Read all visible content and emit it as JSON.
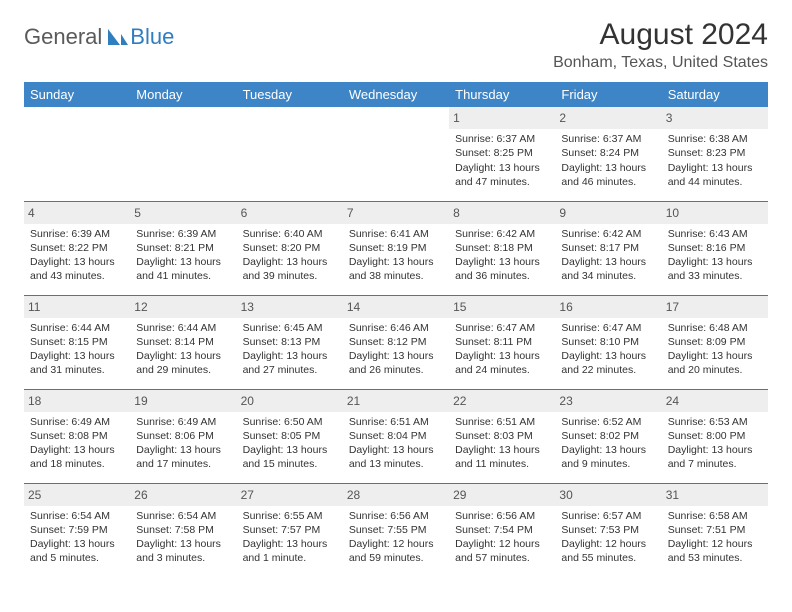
{
  "logo": {
    "main": "General",
    "accent": "Blue"
  },
  "title": "August 2024",
  "location": "Bonham, Texas, United States",
  "colors": {
    "header_bg": "#3d85c6",
    "header_text": "#ffffff",
    "daynum_bg": "#eeeeee",
    "border": "#2f7ec0",
    "logo_accent": "#2f7ec0",
    "body_text": "#333333"
  },
  "weekdays": [
    "Sunday",
    "Monday",
    "Tuesday",
    "Wednesday",
    "Thursday",
    "Friday",
    "Saturday"
  ],
  "weeks": [
    [
      {
        "n": "",
        "sr": "",
        "ss": "",
        "dl1": "",
        "dl2": ""
      },
      {
        "n": "",
        "sr": "",
        "ss": "",
        "dl1": "",
        "dl2": ""
      },
      {
        "n": "",
        "sr": "",
        "ss": "",
        "dl1": "",
        "dl2": ""
      },
      {
        "n": "",
        "sr": "",
        "ss": "",
        "dl1": "",
        "dl2": ""
      },
      {
        "n": "1",
        "sr": "Sunrise: 6:37 AM",
        "ss": "Sunset: 8:25 PM",
        "dl1": "Daylight: 13 hours",
        "dl2": "and 47 minutes."
      },
      {
        "n": "2",
        "sr": "Sunrise: 6:37 AM",
        "ss": "Sunset: 8:24 PM",
        "dl1": "Daylight: 13 hours",
        "dl2": "and 46 minutes."
      },
      {
        "n": "3",
        "sr": "Sunrise: 6:38 AM",
        "ss": "Sunset: 8:23 PM",
        "dl1": "Daylight: 13 hours",
        "dl2": "and 44 minutes."
      }
    ],
    [
      {
        "n": "4",
        "sr": "Sunrise: 6:39 AM",
        "ss": "Sunset: 8:22 PM",
        "dl1": "Daylight: 13 hours",
        "dl2": "and 43 minutes."
      },
      {
        "n": "5",
        "sr": "Sunrise: 6:39 AM",
        "ss": "Sunset: 8:21 PM",
        "dl1": "Daylight: 13 hours",
        "dl2": "and 41 minutes."
      },
      {
        "n": "6",
        "sr": "Sunrise: 6:40 AM",
        "ss": "Sunset: 8:20 PM",
        "dl1": "Daylight: 13 hours",
        "dl2": "and 39 minutes."
      },
      {
        "n": "7",
        "sr": "Sunrise: 6:41 AM",
        "ss": "Sunset: 8:19 PM",
        "dl1": "Daylight: 13 hours",
        "dl2": "and 38 minutes."
      },
      {
        "n": "8",
        "sr": "Sunrise: 6:42 AM",
        "ss": "Sunset: 8:18 PM",
        "dl1": "Daylight: 13 hours",
        "dl2": "and 36 minutes."
      },
      {
        "n": "9",
        "sr": "Sunrise: 6:42 AM",
        "ss": "Sunset: 8:17 PM",
        "dl1": "Daylight: 13 hours",
        "dl2": "and 34 minutes."
      },
      {
        "n": "10",
        "sr": "Sunrise: 6:43 AM",
        "ss": "Sunset: 8:16 PM",
        "dl1": "Daylight: 13 hours",
        "dl2": "and 33 minutes."
      }
    ],
    [
      {
        "n": "11",
        "sr": "Sunrise: 6:44 AM",
        "ss": "Sunset: 8:15 PM",
        "dl1": "Daylight: 13 hours",
        "dl2": "and 31 minutes."
      },
      {
        "n": "12",
        "sr": "Sunrise: 6:44 AM",
        "ss": "Sunset: 8:14 PM",
        "dl1": "Daylight: 13 hours",
        "dl2": "and 29 minutes."
      },
      {
        "n": "13",
        "sr": "Sunrise: 6:45 AM",
        "ss": "Sunset: 8:13 PM",
        "dl1": "Daylight: 13 hours",
        "dl2": "and 27 minutes."
      },
      {
        "n": "14",
        "sr": "Sunrise: 6:46 AM",
        "ss": "Sunset: 8:12 PM",
        "dl1": "Daylight: 13 hours",
        "dl2": "and 26 minutes."
      },
      {
        "n": "15",
        "sr": "Sunrise: 6:47 AM",
        "ss": "Sunset: 8:11 PM",
        "dl1": "Daylight: 13 hours",
        "dl2": "and 24 minutes."
      },
      {
        "n": "16",
        "sr": "Sunrise: 6:47 AM",
        "ss": "Sunset: 8:10 PM",
        "dl1": "Daylight: 13 hours",
        "dl2": "and 22 minutes."
      },
      {
        "n": "17",
        "sr": "Sunrise: 6:48 AM",
        "ss": "Sunset: 8:09 PM",
        "dl1": "Daylight: 13 hours",
        "dl2": "and 20 minutes."
      }
    ],
    [
      {
        "n": "18",
        "sr": "Sunrise: 6:49 AM",
        "ss": "Sunset: 8:08 PM",
        "dl1": "Daylight: 13 hours",
        "dl2": "and 18 minutes."
      },
      {
        "n": "19",
        "sr": "Sunrise: 6:49 AM",
        "ss": "Sunset: 8:06 PM",
        "dl1": "Daylight: 13 hours",
        "dl2": "and 17 minutes."
      },
      {
        "n": "20",
        "sr": "Sunrise: 6:50 AM",
        "ss": "Sunset: 8:05 PM",
        "dl1": "Daylight: 13 hours",
        "dl2": "and 15 minutes."
      },
      {
        "n": "21",
        "sr": "Sunrise: 6:51 AM",
        "ss": "Sunset: 8:04 PM",
        "dl1": "Daylight: 13 hours",
        "dl2": "and 13 minutes."
      },
      {
        "n": "22",
        "sr": "Sunrise: 6:51 AM",
        "ss": "Sunset: 8:03 PM",
        "dl1": "Daylight: 13 hours",
        "dl2": "and 11 minutes."
      },
      {
        "n": "23",
        "sr": "Sunrise: 6:52 AM",
        "ss": "Sunset: 8:02 PM",
        "dl1": "Daylight: 13 hours",
        "dl2": "and 9 minutes."
      },
      {
        "n": "24",
        "sr": "Sunrise: 6:53 AM",
        "ss": "Sunset: 8:00 PM",
        "dl1": "Daylight: 13 hours",
        "dl2": "and 7 minutes."
      }
    ],
    [
      {
        "n": "25",
        "sr": "Sunrise: 6:54 AM",
        "ss": "Sunset: 7:59 PM",
        "dl1": "Daylight: 13 hours",
        "dl2": "and 5 minutes."
      },
      {
        "n": "26",
        "sr": "Sunrise: 6:54 AM",
        "ss": "Sunset: 7:58 PM",
        "dl1": "Daylight: 13 hours",
        "dl2": "and 3 minutes."
      },
      {
        "n": "27",
        "sr": "Sunrise: 6:55 AM",
        "ss": "Sunset: 7:57 PM",
        "dl1": "Daylight: 13 hours",
        "dl2": "and 1 minute."
      },
      {
        "n": "28",
        "sr": "Sunrise: 6:56 AM",
        "ss": "Sunset: 7:55 PM",
        "dl1": "Daylight: 12 hours",
        "dl2": "and 59 minutes."
      },
      {
        "n": "29",
        "sr": "Sunrise: 6:56 AM",
        "ss": "Sunset: 7:54 PM",
        "dl1": "Daylight: 12 hours",
        "dl2": "and 57 minutes."
      },
      {
        "n": "30",
        "sr": "Sunrise: 6:57 AM",
        "ss": "Sunset: 7:53 PM",
        "dl1": "Daylight: 12 hours",
        "dl2": "and 55 minutes."
      },
      {
        "n": "31",
        "sr": "Sunrise: 6:58 AM",
        "ss": "Sunset: 7:51 PM",
        "dl1": "Daylight: 12 hours",
        "dl2": "and 53 minutes."
      }
    ]
  ]
}
